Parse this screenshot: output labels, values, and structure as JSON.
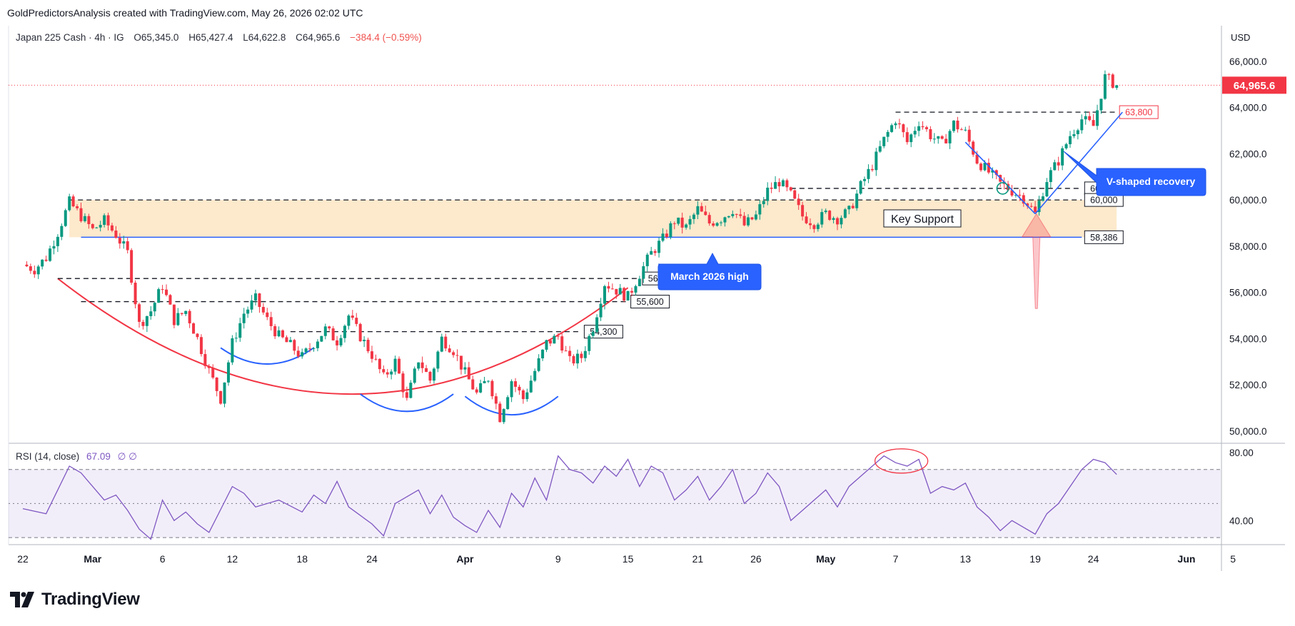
{
  "header": {
    "credit": "GoldPredictorsAnalysis created with TradingView.com, May 26, 2026 02:02 UTC"
  },
  "legend": {
    "symbol": "Japan 225 Cash · 4h · IG",
    "open": "O65,345.0",
    "high": "H65,427.4",
    "low": "L64,622.8",
    "close": "C64,965.6",
    "change": "−384.4 (−0.59%)"
  },
  "currency": "USD",
  "rsi_legend": {
    "label": "RSI (14, close)",
    "value": "67.09",
    "extra": "∅ ∅"
  },
  "price_tag": {
    "text": "64,965.6",
    "color": "#f23645"
  },
  "brand": {
    "name": "TradingView"
  },
  "chart_data": {
    "type": "candlestick",
    "title": "Japan 225 Cash · 4h · IG",
    "price_axis": {
      "ylim": [
        49500,
        66800
      ],
      "ticks": [
        50000,
        52000,
        54000,
        56000,
        58000,
        60000,
        62000,
        64000,
        66000
      ],
      "tick_labels": [
        "50,000.0",
        "52,000.0",
        "54,000.0",
        "56,000.0",
        "58,000.0",
        "60,000.0",
        "62,000.0",
        "64,000.0",
        "66,000.0"
      ]
    },
    "time_axis": {
      "labels": [
        {
          "text": "22",
          "day": 0
        },
        {
          "text": "Mar",
          "day": 6
        },
        {
          "text": "6",
          "day": 12
        },
        {
          "text": "12",
          "day": 18
        },
        {
          "text": "18",
          "day": 24
        },
        {
          "text": "24",
          "day": 30
        },
        {
          "text": "Apr",
          "day": 38
        },
        {
          "text": "9",
          "day": 46
        },
        {
          "text": "15",
          "day": 52
        },
        {
          "text": "21",
          "day": 58
        },
        {
          "text": "26",
          "day": 63
        },
        {
          "text": "May",
          "day": 69
        },
        {
          "text": "7",
          "day": 75
        },
        {
          "text": "13",
          "day": 81
        },
        {
          "text": "19",
          "day": 87
        },
        {
          "text": "24",
          "day": 92
        },
        {
          "text": "Jun",
          "day": 100
        },
        {
          "text": "5",
          "day": 104
        }
      ],
      "bold_labels": [
        "Mar",
        "Apr",
        "May",
        "Jun"
      ]
    },
    "path_points": [
      [
        0,
        57200
      ],
      [
        1,
        57000
      ],
      [
        2,
        57500
      ],
      [
        3,
        58600
      ],
      [
        4,
        59900
      ],
      [
        5,
        59300
      ],
      [
        6,
        58700
      ],
      [
        7,
        59100
      ],
      [
        8,
        58500
      ],
      [
        9,
        57700
      ],
      [
        10,
        54600
      ],
      [
        11,
        55200
      ],
      [
        12,
        56300
      ],
      [
        13,
        54800
      ],
      [
        14,
        55200
      ],
      [
        15,
        54000
      ],
      [
        16,
        52600
      ],
      [
        17,
        51400
      ],
      [
        18,
        53800
      ],
      [
        19,
        55100
      ],
      [
        20,
        55700
      ],
      [
        21,
        54800
      ],
      [
        22,
        54100
      ],
      [
        23,
        53700
      ],
      [
        24,
        53200
      ],
      [
        25,
        53800
      ],
      [
        26,
        54400
      ],
      [
        27,
        53900
      ],
      [
        28,
        55000
      ],
      [
        29,
        54100
      ],
      [
        30,
        53300
      ],
      [
        31,
        52300
      ],
      [
        32,
        53000
      ],
      [
        33,
        51300
      ],
      [
        34,
        53100
      ],
      [
        35,
        52200
      ],
      [
        36,
        54000
      ],
      [
        37,
        53500
      ],
      [
        38,
        52500
      ],
      [
        39,
        51600
      ],
      [
        40,
        52300
      ],
      [
        41,
        50600
      ],
      [
        42,
        52200
      ],
      [
        43,
        51400
      ],
      [
        44,
        52600
      ],
      [
        45,
        53800
      ],
      [
        46,
        54100
      ],
      [
        47,
        53000
      ],
      [
        48,
        53200
      ],
      [
        49,
        54500
      ],
      [
        50,
        56400
      ],
      [
        51,
        56100
      ],
      [
        52,
        55800
      ],
      [
        53,
        56800
      ],
      [
        54,
        57700
      ],
      [
        55,
        58300
      ],
      [
        56,
        59100
      ],
      [
        57,
        58800
      ],
      [
        58,
        59600
      ],
      [
        59,
        59000
      ],
      [
        60,
        59200
      ],
      [
        61,
        59600
      ],
      [
        62,
        58900
      ],
      [
        63,
        59300
      ],
      [
        64,
        60400
      ],
      [
        65,
        60800
      ],
      [
        66,
        60200
      ],
      [
        67,
        59300
      ],
      [
        68,
        59000
      ],
      [
        69,
        59400
      ],
      [
        70,
        59200
      ],
      [
        71,
        59500
      ],
      [
        72,
        60600
      ],
      [
        73,
        61500
      ],
      [
        74,
        62600
      ],
      [
        75,
        63500
      ],
      [
        76,
        62500
      ],
      [
        77,
        63400
      ],
      [
        78,
        62800
      ],
      [
        79,
        62400
      ],
      [
        80,
        63300
      ],
      [
        81,
        62900
      ],
      [
        82,
        61700
      ],
      [
        83,
        61200
      ],
      [
        84,
        60700
      ],
      [
        85,
        60400
      ],
      [
        86,
        60100
      ],
      [
        87,
        59400
      ],
      [
        88,
        60900
      ],
      [
        89,
        61700
      ],
      [
        90,
        62800
      ],
      [
        91,
        63500
      ],
      [
        92,
        63200
      ],
      [
        93,
        65300
      ],
      [
        94,
        64965.6
      ]
    ],
    "last_price": 64965.6,
    "levels": [
      {
        "price": 63800,
        "label": "63,800",
        "style": "dashed",
        "label_color": "#f23645"
      },
      {
        "price": 60500,
        "label": "60,500",
        "style": "dashed"
      },
      {
        "price": 60000,
        "label": "60,000",
        "style": "dashed"
      },
      {
        "price": 58386,
        "label": "58,386",
        "style": "solid-blue"
      },
      {
        "price": 56600,
        "label": "56,600",
        "style": "dashed"
      },
      {
        "price": 55600,
        "label": "55,600",
        "style": "dashed"
      },
      {
        "price": 54300,
        "label": "54,300",
        "style": "dashed"
      }
    ],
    "support_zone": [
      58386,
      60000
    ],
    "annotations": {
      "key_support": "Key Support",
      "v_shaped": "V-shaped recovery",
      "march_high": "March 2026 high"
    },
    "rsi": {
      "ylim": [
        25,
        85
      ],
      "ticks": [
        40,
        80
      ],
      "tick_labels": [
        "40.00",
        "80.00"
      ],
      "overbought": 70,
      "oversold": 30,
      "last": 67.09,
      "points": [
        [
          0,
          47
        ],
        [
          2,
          44
        ],
        [
          4,
          72
        ],
        [
          5,
          68
        ],
        [
          7,
          52
        ],
        [
          8,
          55
        ],
        [
          9,
          46
        ],
        [
          10,
          35
        ],
        [
          11,
          29
        ],
        [
          12,
          52
        ],
        [
          13,
          40
        ],
        [
          14,
          45
        ],
        [
          15,
          38
        ],
        [
          16,
          33
        ],
        [
          18,
          60
        ],
        [
          19,
          56
        ],
        [
          20,
          48
        ],
        [
          22,
          52
        ],
        [
          24,
          45
        ],
        [
          25,
          55
        ],
        [
          26,
          50
        ],
        [
          27,
          63
        ],
        [
          28,
          48
        ],
        [
          30,
          38
        ],
        [
          31,
          31
        ],
        [
          32,
          50
        ],
        [
          34,
          58
        ],
        [
          35,
          44
        ],
        [
          36,
          55
        ],
        [
          37,
          42
        ],
        [
          38,
          37
        ],
        [
          39,
          33
        ],
        [
          40,
          46
        ],
        [
          41,
          36
        ],
        [
          42,
          56
        ],
        [
          43,
          48
        ],
        [
          44,
          65
        ],
        [
          45,
          52
        ],
        [
          46,
          78
        ],
        [
          47,
          70
        ],
        [
          48,
          68
        ],
        [
          49,
          62
        ],
        [
          50,
          72
        ],
        [
          51,
          66
        ],
        [
          52,
          76
        ],
        [
          53,
          60
        ],
        [
          54,
          72
        ],
        [
          55,
          68
        ],
        [
          56,
          52
        ],
        [
          57,
          58
        ],
        [
          58,
          66
        ],
        [
          59,
          52
        ],
        [
          60,
          60
        ],
        [
          61,
          70
        ],
        [
          62,
          50
        ],
        [
          63,
          56
        ],
        [
          64,
          68
        ],
        [
          65,
          60
        ],
        [
          66,
          40
        ],
        [
          67,
          46
        ],
        [
          68,
          52
        ],
        [
          69,
          58
        ],
        [
          70,
          48
        ],
        [
          71,
          60
        ],
        [
          72,
          66
        ],
        [
          73,
          72
        ],
        [
          74,
          78
        ],
        [
          75,
          74
        ],
        [
          76,
          72
        ],
        [
          77,
          76
        ],
        [
          78,
          56
        ],
        [
          79,
          60
        ],
        [
          80,
          58
        ],
        [
          81,
          62
        ],
        [
          82,
          48
        ],
        [
          83,
          42
        ],
        [
          84,
          34
        ],
        [
          85,
          40
        ],
        [
          86,
          36
        ],
        [
          87,
          32
        ],
        [
          88,
          44
        ],
        [
          89,
          50
        ],
        [
          90,
          60
        ],
        [
          91,
          70
        ],
        [
          92,
          76
        ],
        [
          93,
          74
        ],
        [
          94,
          67.09
        ]
      ]
    }
  }
}
